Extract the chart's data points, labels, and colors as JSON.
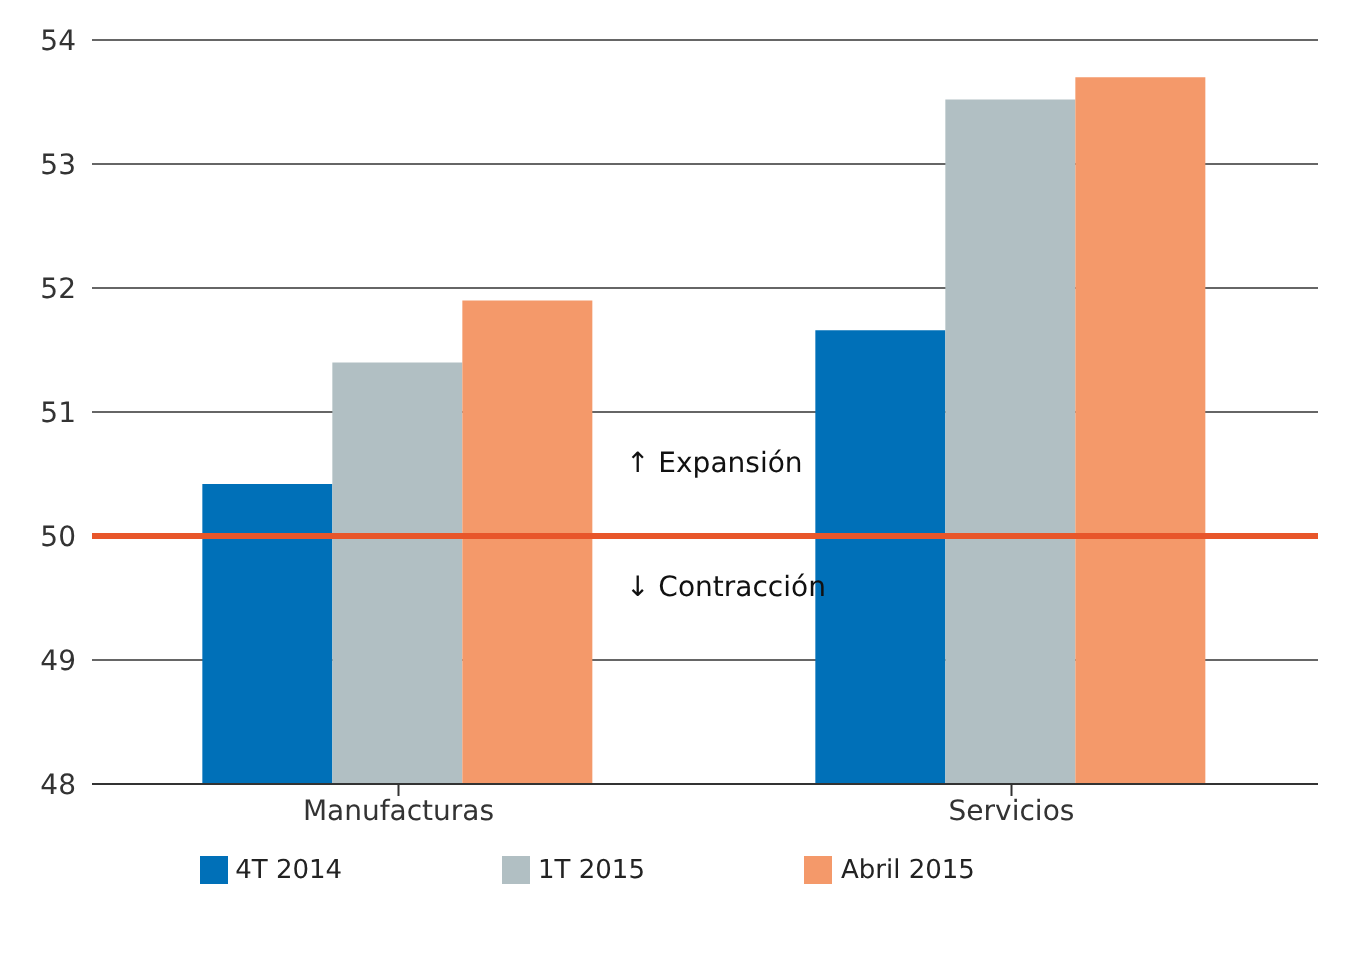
{
  "chart_data": {
    "type": "bar",
    "categories": [
      "Manufacturas",
      "Servicios"
    ],
    "series": [
      {
        "name": "4T 2014",
        "color": "#0070b8",
        "values": [
          50.42,
          51.66
        ]
      },
      {
        "name": "1T 2015",
        "color": "#b1bfc3",
        "values": [
          51.4,
          53.52
        ]
      },
      {
        "name": "Abril 2015",
        "color": "#f4996a",
        "values": [
          51.9,
          53.7
        ]
      }
    ],
    "ylim": [
      48,
      54
    ],
    "yticks": [
      48,
      49,
      50,
      51,
      52,
      53,
      54
    ],
    "grid": "y",
    "legend": "bottom",
    "ref_lines": [
      {
        "axis": "y",
        "value": 50,
        "color": "#e8562a"
      }
    ],
    "annotations": [
      "↑ Expansión",
      "↓ Contracción"
    ]
  }
}
